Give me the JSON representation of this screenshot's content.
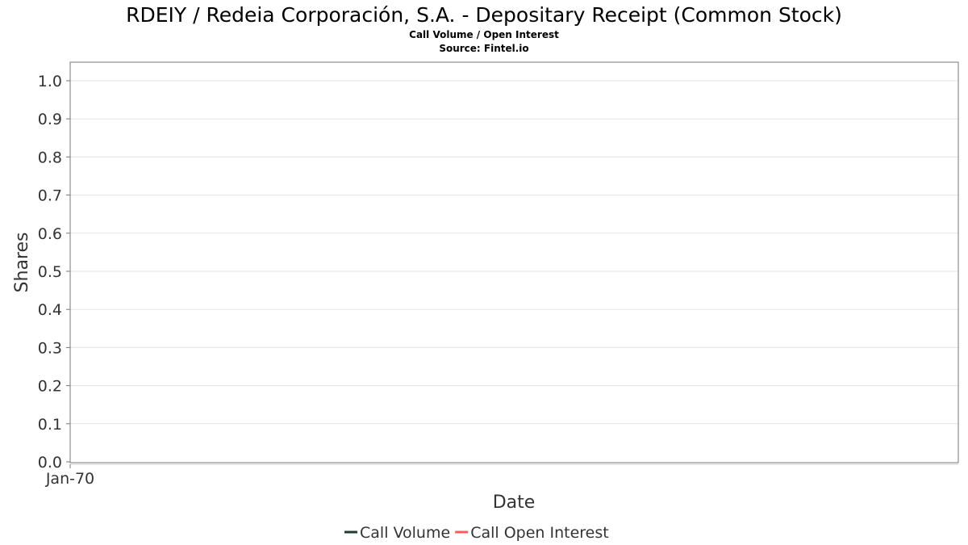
{
  "chart_data": {
    "type": "line",
    "title": "RDEIY / Redeia Corporación, S.A. - Depositary Receipt (Common Stock)",
    "subtitle": "Call Volume / Open Interest",
    "source": "Source: Fintel.io",
    "xlabel": "Date",
    "ylabel": "Shares",
    "x_ticks": [
      "Jan-70"
    ],
    "y_ticks": [
      "0.0",
      "0.1",
      "0.2",
      "0.3",
      "0.4",
      "0.5",
      "0.6",
      "0.7",
      "0.8",
      "0.9",
      "1.0"
    ],
    "ylim": [
      0,
      1.05
    ],
    "grid": true,
    "legend_position": "bottom",
    "series": [
      {
        "name": "Call Volume",
        "color": "#1f3d2b",
        "values": []
      },
      {
        "name": "Call Open Interest",
        "color": "#ff5a5a",
        "values": []
      }
    ]
  }
}
